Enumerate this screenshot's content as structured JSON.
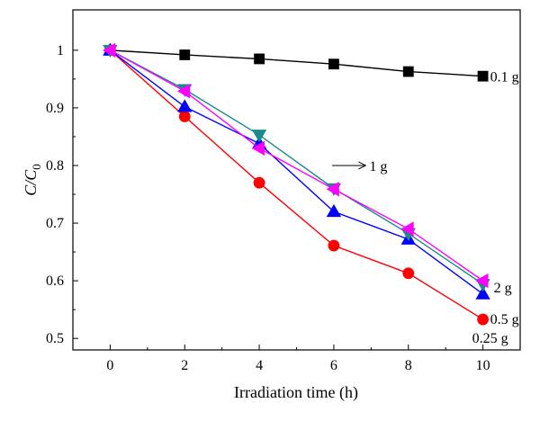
{
  "chart_data": {
    "type": "line",
    "xlabel": "Irradiation time (h)",
    "ylabel": "C/C0",
    "ylabel_main": "C/C",
    "ylabel_sub": "0",
    "xlim": [
      -1,
      11
    ],
    "ylim": [
      0.48,
      1.07
    ],
    "xticks": [
      0,
      2,
      4,
      6,
      8,
      10
    ],
    "yticks": [
      0.5,
      0.6,
      0.7,
      0.8,
      0.9,
      1.0
    ],
    "xtick_labels": [
      "0",
      "2",
      "4",
      "6",
      "8",
      "10"
    ],
    "ytick_labels": [
      "0.5",
      "0.6",
      "0.7",
      "0.8",
      "0.9",
      "1"
    ],
    "x": [
      0,
      2,
      4,
      6,
      8,
      10
    ],
    "grid": false,
    "series": [
      {
        "label": "0.1 g",
        "color": "#000000",
        "marker": "square",
        "values": [
          1.0,
          0.992,
          0.985,
          0.976,
          0.963,
          0.955
        ]
      },
      {
        "label": "0.25 g",
        "color": "#ff0000",
        "marker": "circle",
        "values": [
          1.0,
          0.885,
          0.77,
          0.661,
          0.613,
          0.533
        ]
      },
      {
        "label": "0.5 g",
        "color": "#0000ff",
        "marker": "triangle-up",
        "values": [
          1.0,
          0.902,
          0.838,
          0.72,
          0.672,
          0.577
        ]
      },
      {
        "label": "1 g",
        "color": "#1a8a8a",
        "marker": "triangle-down",
        "values": [
          1.0,
          0.932,
          0.853,
          0.76,
          0.682,
          0.594
        ]
      },
      {
        "label": "2 g",
        "color": "#ff00ff",
        "marker": "triangle-left",
        "values": [
          1.0,
          0.929,
          0.83,
          0.759,
          0.69,
          0.6
        ]
      }
    ],
    "annotations": [
      {
        "text": "0.1 g",
        "series": "0.1 g"
      },
      {
        "text": "1 g",
        "series": "1 g",
        "arrow": true
      },
      {
        "text": "2 g",
        "series": "2 g"
      },
      {
        "text": "0.5 g",
        "series": "0.5 g"
      },
      {
        "text": "0.25 g",
        "series": "0.25 g"
      }
    ]
  }
}
